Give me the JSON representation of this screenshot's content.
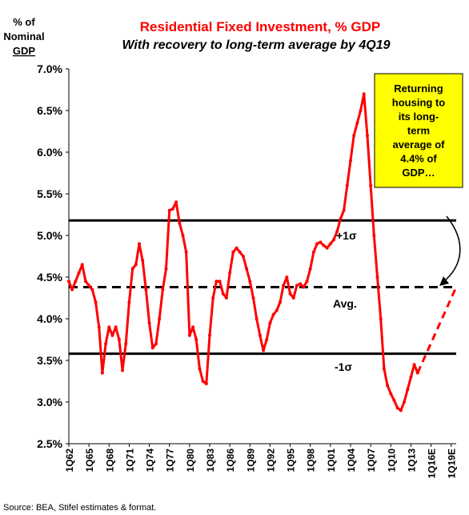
{
  "chart_data": {
    "type": "line",
    "title": "Residential Fixed Investment, % GDP",
    "subtitle": "With recovery to long-term average by 4Q19",
    "ylabel": [
      "% of",
      "Nominal",
      "GDP"
    ],
    "ylim": [
      2.5,
      7.0
    ],
    "yticks": [
      "2.5%",
      "3.0%",
      "3.5%",
      "4.0%",
      "4.5%",
      "5.0%",
      "5.5%",
      "6.0%",
      "6.5%",
      "7.0%"
    ],
    "xticks": [
      "1Q62",
      "1Q65",
      "1Q68",
      "1Q71",
      "1Q74",
      "1Q77",
      "1Q80",
      "1Q83",
      "1Q86",
      "1Q89",
      "1Q92",
      "1Q95",
      "1Q98",
      "1Q01",
      "1Q04",
      "1Q07",
      "1Q10",
      "1Q13",
      "1Q16E",
      "1Q19E"
    ],
    "grid": false,
    "reference_lines": [
      {
        "label": "+1σ",
        "value": 5.18,
        "style": "solid"
      },
      {
        "label": "Avg.",
        "value": 4.38,
        "style": "dashed"
      },
      {
        "label": "-1σ",
        "value": 3.58,
        "style": "solid"
      }
    ],
    "series": [
      {
        "style": "solid",
        "color": "#ff0000",
        "points": [
          [
            "1962.0",
            4.45
          ],
          [
            "1962.5",
            4.35
          ],
          [
            "1963.0",
            4.45
          ],
          [
            "1963.5",
            4.55
          ],
          [
            "1964.0",
            4.65
          ],
          [
            "1964.5",
            4.45
          ],
          [
            "1965.0",
            4.4
          ],
          [
            "1965.5",
            4.35
          ],
          [
            "1966.0",
            4.2
          ],
          [
            "1966.5",
            3.9
          ],
          [
            "1967.0",
            3.35
          ],
          [
            "1967.5",
            3.7
          ],
          [
            "1968.0",
            3.9
          ],
          [
            "1968.5",
            3.8
          ],
          [
            "1969.0",
            3.9
          ],
          [
            "1969.5",
            3.75
          ],
          [
            "1970.0",
            3.38
          ],
          [
            "1970.5",
            3.7
          ],
          [
            "1971.0",
            4.2
          ],
          [
            "1971.5",
            4.6
          ],
          [
            "1972.0",
            4.65
          ],
          [
            "1972.5",
            4.9
          ],
          [
            "1973.0",
            4.7
          ],
          [
            "1973.5",
            4.35
          ],
          [
            "1974.0",
            3.95
          ],
          [
            "1974.5",
            3.65
          ],
          [
            "1975.0",
            3.7
          ],
          [
            "1975.5",
            4.0
          ],
          [
            "1976.0",
            4.35
          ],
          [
            "1976.5",
            4.6
          ],
          [
            "1977.0",
            5.3
          ],
          [
            "1977.5",
            5.32
          ],
          [
            "1978.0",
            5.4
          ],
          [
            "1978.5",
            5.15
          ],
          [
            "1979.0",
            5.0
          ],
          [
            "1979.5",
            4.8
          ],
          [
            "1980.0",
            3.8
          ],
          [
            "1980.5",
            3.9
          ],
          [
            "1981.0",
            3.75
          ],
          [
            "1981.5",
            3.4
          ],
          [
            "1982.0",
            3.25
          ],
          [
            "1982.5",
            3.22
          ],
          [
            "1983.0",
            3.8
          ],
          [
            "1983.5",
            4.25
          ],
          [
            "1984.0",
            4.45
          ],
          [
            "1984.5",
            4.45
          ],
          [
            "1985.0",
            4.3
          ],
          [
            "1985.5",
            4.25
          ],
          [
            "1986.0",
            4.55
          ],
          [
            "1986.5",
            4.8
          ],
          [
            "1987.0",
            4.85
          ],
          [
            "1987.5",
            4.8
          ],
          [
            "1988.0",
            4.75
          ],
          [
            "1988.5",
            4.6
          ],
          [
            "1989.0",
            4.45
          ],
          [
            "1989.5",
            4.25
          ],
          [
            "1990.0",
            4.0
          ],
          [
            "1990.5",
            3.8
          ],
          [
            "1991.0",
            3.62
          ],
          [
            "1991.5",
            3.75
          ],
          [
            "1992.0",
            3.95
          ],
          [
            "1992.5",
            4.05
          ],
          [
            "1993.0",
            4.1
          ],
          [
            "1993.5",
            4.2
          ],
          [
            "1994.0",
            4.4
          ],
          [
            "1994.5",
            4.5
          ],
          [
            "1995.0",
            4.3
          ],
          [
            "1995.5",
            4.25
          ],
          [
            "1996.0",
            4.4
          ],
          [
            "1996.5",
            4.42
          ],
          [
            "1997.0",
            4.38
          ],
          [
            "1997.5",
            4.45
          ],
          [
            "1998.0",
            4.6
          ],
          [
            "1998.5",
            4.8
          ],
          [
            "1999.0",
            4.9
          ],
          [
            "1999.5",
            4.92
          ],
          [
            "2000.0",
            4.88
          ],
          [
            "2000.5",
            4.85
          ],
          [
            "2001.0",
            4.9
          ],
          [
            "2001.5",
            4.95
          ],
          [
            "2002.0",
            5.05
          ],
          [
            "2002.5",
            5.2
          ],
          [
            "2003.0",
            5.3
          ],
          [
            "2003.5",
            5.6
          ],
          [
            "2004.0",
            5.9
          ],
          [
            "2004.5",
            6.2
          ],
          [
            "2005.0",
            6.35
          ],
          [
            "2005.5",
            6.5
          ],
          [
            "2006.0",
            6.7
          ],
          [
            "2006.5",
            6.2
          ],
          [
            "2007.0",
            5.6
          ],
          [
            "2007.5",
            5.0
          ],
          [
            "2008.0",
            4.5
          ],
          [
            "2008.5",
            4.0
          ],
          [
            "2009.0",
            3.4
          ],
          [
            "2009.5",
            3.2
          ],
          [
            "2010.0",
            3.1
          ],
          [
            "2010.5",
            3.02
          ],
          [
            "2011.0",
            2.93
          ],
          [
            "2011.5",
            2.9
          ],
          [
            "2012.0",
            3.0
          ],
          [
            "2012.5",
            3.15
          ],
          [
            "2013.0",
            3.3
          ],
          [
            "2013.5",
            3.45
          ],
          [
            "2014.0",
            3.35
          ]
        ]
      },
      {
        "style": "dashed",
        "color": "#ff0000",
        "points": [
          [
            "2014.0",
            3.35
          ],
          [
            "2019.75",
            4.38
          ]
        ]
      }
    ],
    "annotation": {
      "text_lines": [
        "Returning",
        "housing to",
        "its long-",
        "term",
        "average of",
        "4.4% of",
        "GDP…"
      ],
      "box_color": "#ffff00"
    },
    "line_labels": {
      "upper": "+1σ",
      "avg": "Avg.",
      "lower": "-1σ"
    },
    "source": "Source: BEA, Stifel estimates & format."
  }
}
